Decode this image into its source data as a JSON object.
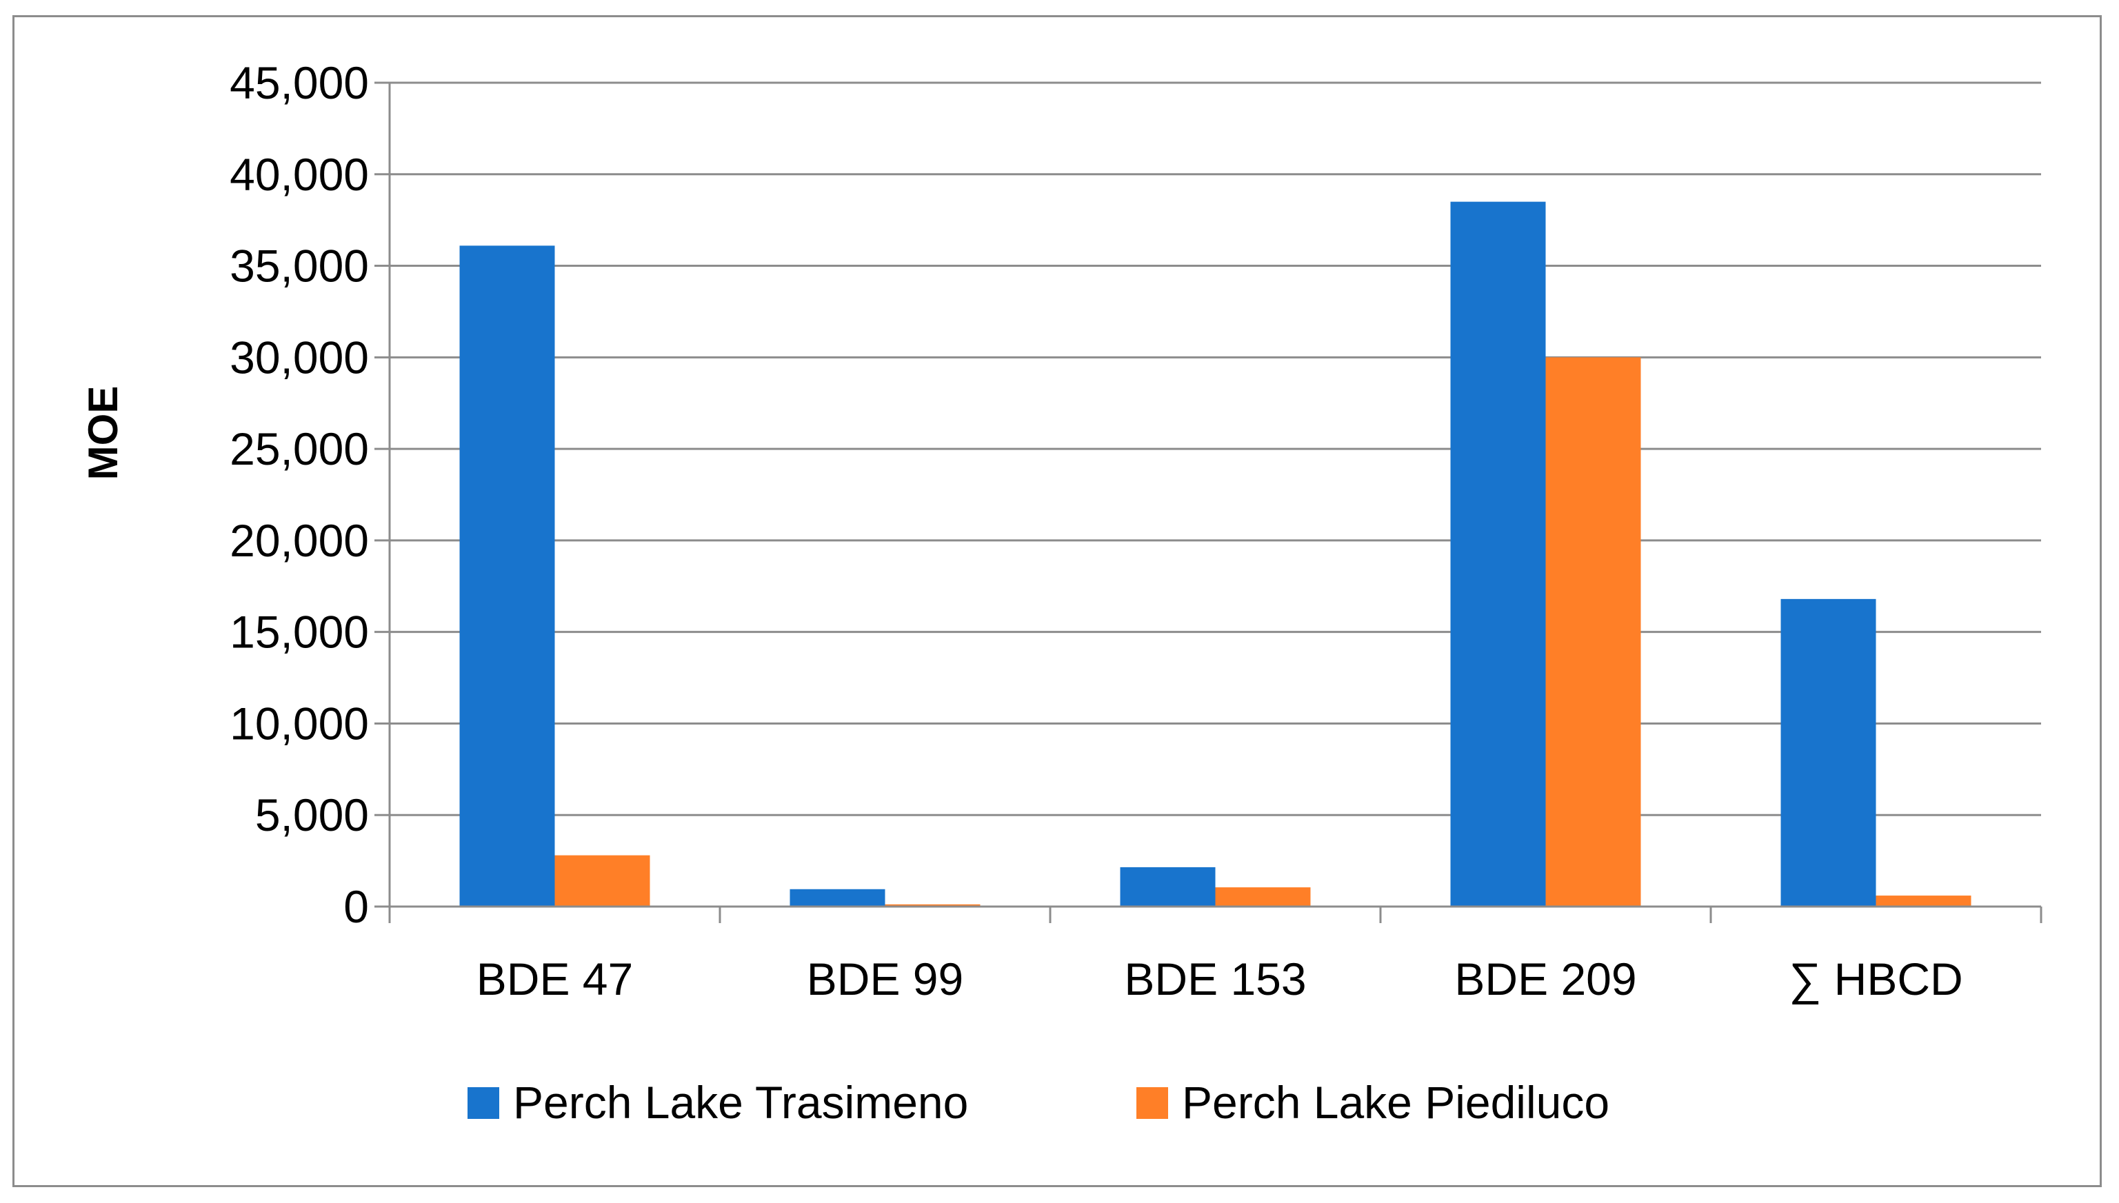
{
  "chart_data": {
    "type": "bar",
    "title": "",
    "xlabel": "",
    "ylabel": "MOE",
    "ylim": [
      0,
      45000
    ],
    "y_ticks": [
      0,
      5000,
      10000,
      15000,
      20000,
      25000,
      30000,
      35000,
      40000,
      45000
    ],
    "y_tick_labels": [
      "0",
      "5,000",
      "10,000",
      "15,000",
      "20,000",
      "25,000",
      "30,000",
      "35,000",
      "40,000",
      "45,000"
    ],
    "categories": [
      "BDE 47",
      "BDE 99",
      "BDE 153",
      "BDE 209",
      "∑ HBCD"
    ],
    "series": [
      {
        "name": "Perch Lake Trasimeno",
        "color": "#1874CD",
        "values": [
          36100,
          950,
          2150,
          38500,
          16800
        ]
      },
      {
        "name": "Perch Lake Piediluco",
        "color": "#FF7F27",
        "values": [
          2800,
          120,
          1050,
          30000,
          600
        ]
      }
    ],
    "grid": true,
    "legend_position": "bottom"
  }
}
